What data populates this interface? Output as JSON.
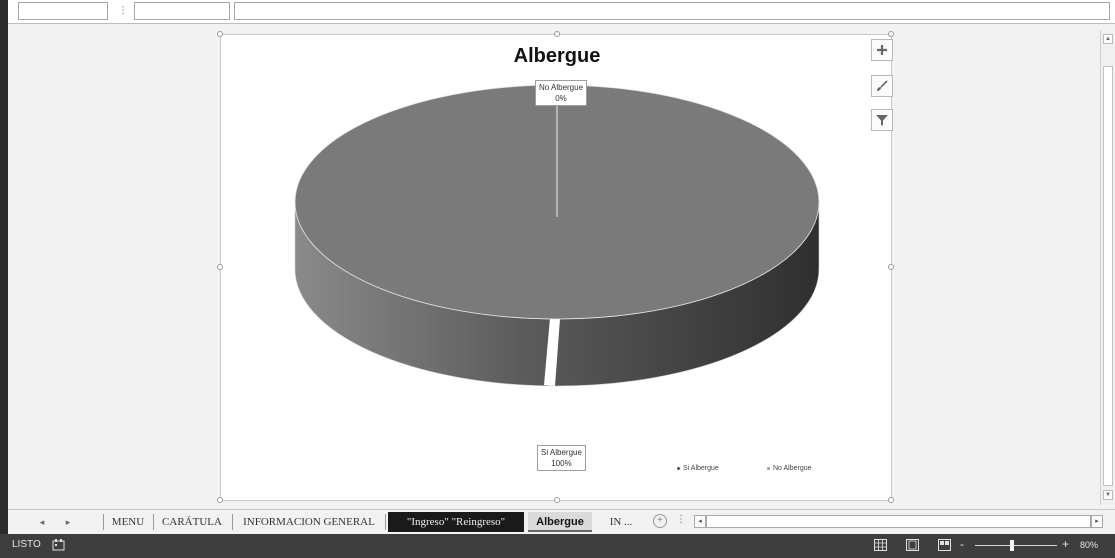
{
  "chart": {
    "title": "Albergue",
    "tools": [
      "plus-icon",
      "brush-icon",
      "filter-icon"
    ]
  },
  "chart_data": {
    "type": "pie",
    "title": "Albergue",
    "categories": [
      "Si Albergue",
      "No Albergue"
    ],
    "values": [
      100,
      0
    ],
    "data_labels": [
      {
        "category": "No Albergue",
        "value": "0%"
      },
      {
        "category": "Si Albergue",
        "value": "100%"
      }
    ],
    "legend": {
      "entries": [
        "Si Albergue",
        "No Albergue"
      ],
      "placement": "bottom-right"
    },
    "colors": {
      "Si Albergue": "#7a7a7a",
      "No Albergue": "#bdbdbd"
    },
    "style": "3d"
  },
  "sheet_tabs": [
    {
      "label": "MENU",
      "active": false
    },
    {
      "label": "CARÁTULA",
      "active": false
    },
    {
      "label": "INFORMACION GENERAL",
      "active": false
    },
    {
      "label": "\"Ingreso\" \"Reingreso\"",
      "active": false,
      "highlight": true
    },
    {
      "label": "Albergue",
      "active": true
    },
    {
      "label": "IN ...",
      "active": false
    }
  ],
  "status": {
    "mode": "LISTO",
    "zoom": "80%"
  }
}
